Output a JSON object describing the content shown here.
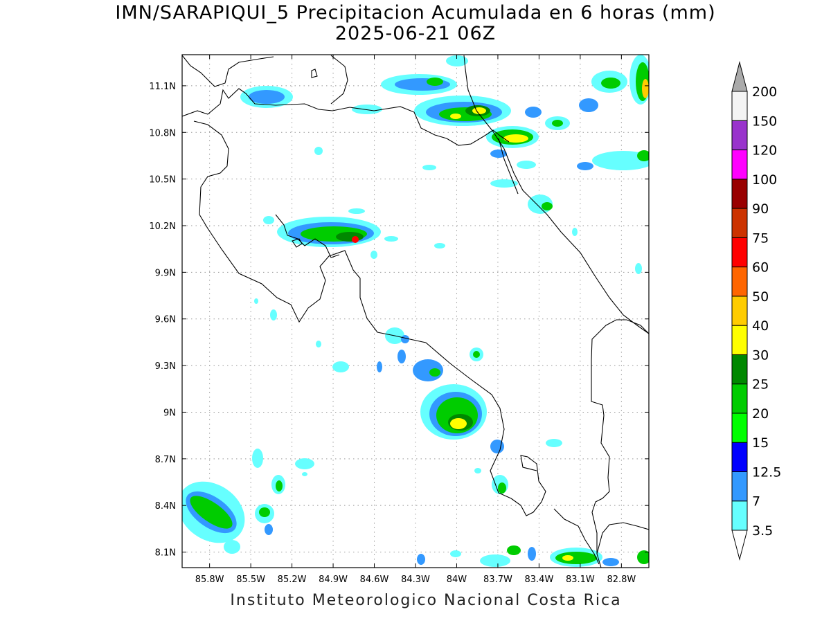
{
  "title": "IMN/SARAPIQUI_5 Precipitacion Acumulada en 6 horas (mm)",
  "subtitle": "2025-06-21 06Z",
  "footer": "Instituto Meteorologico Nacional Costa Rica",
  "map": {
    "lon_range": [
      -86.0,
      -82.6
    ],
    "lat_range": [
      8.0,
      11.3
    ],
    "lon_ticks": [
      "85.8W",
      "85.5W",
      "85.2W",
      "84.9W",
      "84.6W",
      "84.3W",
      "84W",
      "83.7W",
      "83.4W",
      "83.1W",
      "82.8W"
    ],
    "lat_ticks": [
      "8.1N",
      "8.4N",
      "8.7N",
      "9N",
      "9.3N",
      "9.6N",
      "9.9N",
      "10.2N",
      "10.5N",
      "10.8N",
      "11.1N"
    ],
    "grid": true
  },
  "legend": {
    "colors": [
      "#66ffff",
      "#3399ff",
      "#0000ff",
      "#00ff00",
      "#00cc00",
      "#008800",
      "#ffff00",
      "#ffcc00",
      "#ff6600",
      "#ff0000",
      "#cc3300",
      "#990000",
      "#ff00ff",
      "#9933cc",
      "#f4f4f4"
    ],
    "labels": [
      "3.5",
      "7",
      "12.5",
      "15",
      "20",
      "25",
      "30",
      "40",
      "50",
      "60",
      "75",
      "90",
      "100",
      "120",
      "150",
      "200"
    ],
    "over_color": "#aaaaaa"
  }
}
